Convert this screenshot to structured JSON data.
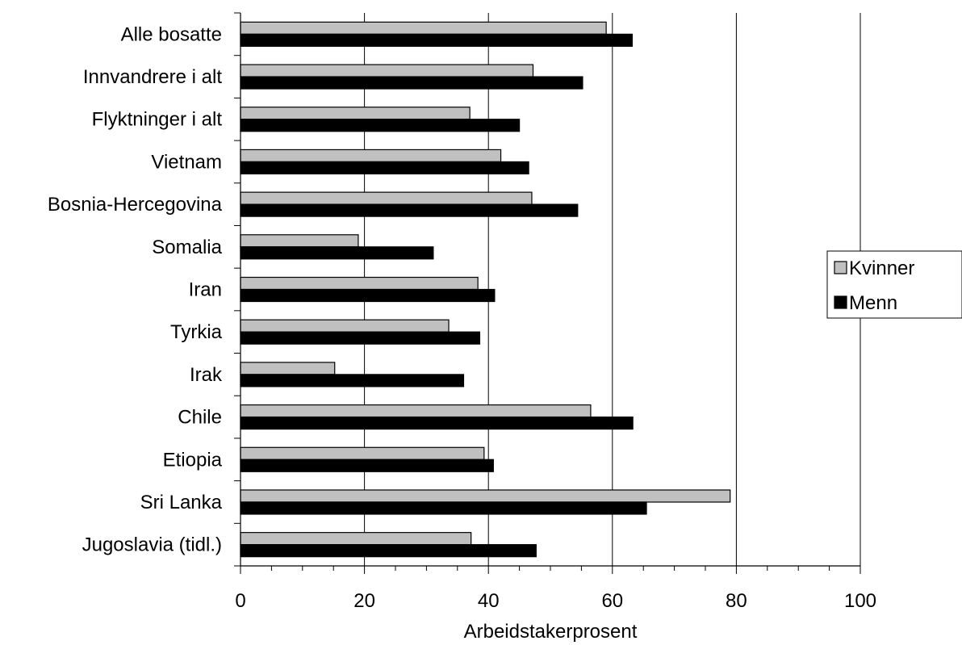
{
  "chart_data": {
    "type": "bar",
    "orientation": "horizontal",
    "categories": [
      "Alle bosatte",
      "Innvandrere i alt",
      "Flyktninger i alt",
      "Vietnam",
      "Bosnia-Hercegovina",
      "Somalia",
      "Iran",
      "Tyrkia",
      "Irak",
      "Chile",
      "Etiopia",
      "Sri Lanka",
      "Jugoslavia (tidl.)"
    ],
    "series": [
      {
        "name": "Kvinner",
        "color": "#c0c0c0",
        "values": [
          59,
          47.2,
          37,
          42,
          47,
          19,
          38.3,
          33.6,
          15.2,
          56.5,
          39.3,
          79,
          37.2
        ]
      },
      {
        "name": "Menn",
        "color": "#000000",
        "values": [
          63.2,
          55.2,
          45,
          46.5,
          54.4,
          31.1,
          41,
          38.6,
          36,
          63.3,
          40.8,
          65.5,
          47.7
        ]
      }
    ],
    "xlabel": "Arbeidstakerprosent",
    "xlim": [
      0,
      100
    ],
    "xticks": [
      0,
      20,
      40,
      60,
      80,
      100
    ],
    "grid": true,
    "legend_position": "right"
  }
}
